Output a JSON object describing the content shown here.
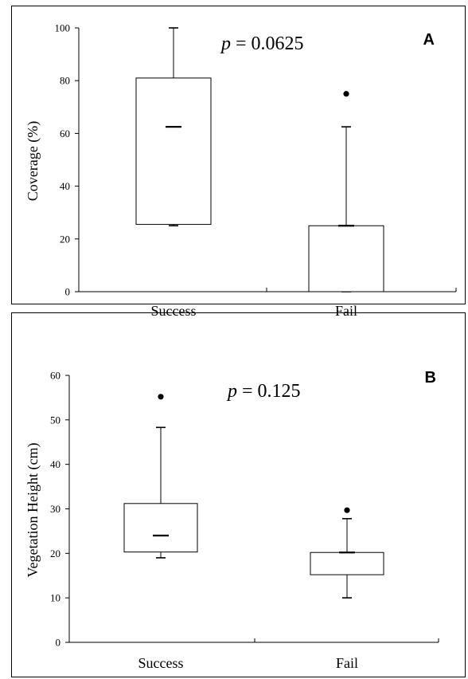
{
  "chart_data": [
    {
      "type": "box",
      "panel_label": "A",
      "annotation": {
        "italic": "p",
        "rest": " = 0.0625"
      },
      "ylabel": "Coverage (%)",
      "ylim": [
        0,
        100
      ],
      "yticks": [
        "0",
        "20",
        "40",
        "60",
        "80",
        "100"
      ],
      "ytick_values": [
        0,
        20,
        40,
        60,
        80,
        100
      ],
      "categories": [
        "Success",
        "Fail"
      ],
      "boxes": [
        {
          "name": "Success",
          "min": 25,
          "q1": 25.5,
          "median": 62.5,
          "q3": 81,
          "max": 100,
          "outliers": []
        },
        {
          "name": "Fail",
          "min": 0,
          "q1": 0,
          "median": 25,
          "q3": 25,
          "max": 62.5,
          "outliers": [
            75
          ]
        }
      ]
    },
    {
      "type": "box",
      "panel_label": "B",
      "annotation": {
        "italic": "p",
        "rest": " = 0.125"
      },
      "ylabel": "Vegetation Height (cm)",
      "ylim": [
        0,
        60
      ],
      "yticks": [
        "0",
        "10",
        "20",
        "30",
        "40",
        "50",
        "60"
      ],
      "ytick_values": [
        0,
        10,
        20,
        30,
        40,
        50,
        60
      ],
      "categories": [
        "Success",
        "Fail"
      ],
      "boxes": [
        {
          "name": "Success",
          "min": 19,
          "q1": 20.3,
          "median": 24,
          "q3": 31.2,
          "max": 48.3,
          "outliers": [
            55.2
          ]
        },
        {
          "name": "Fail",
          "min": 10,
          "q1": 15.2,
          "median": 20.2,
          "q3": 20.2,
          "max": 27.8,
          "outliers": [
            29.7
          ]
        }
      ]
    }
  ]
}
